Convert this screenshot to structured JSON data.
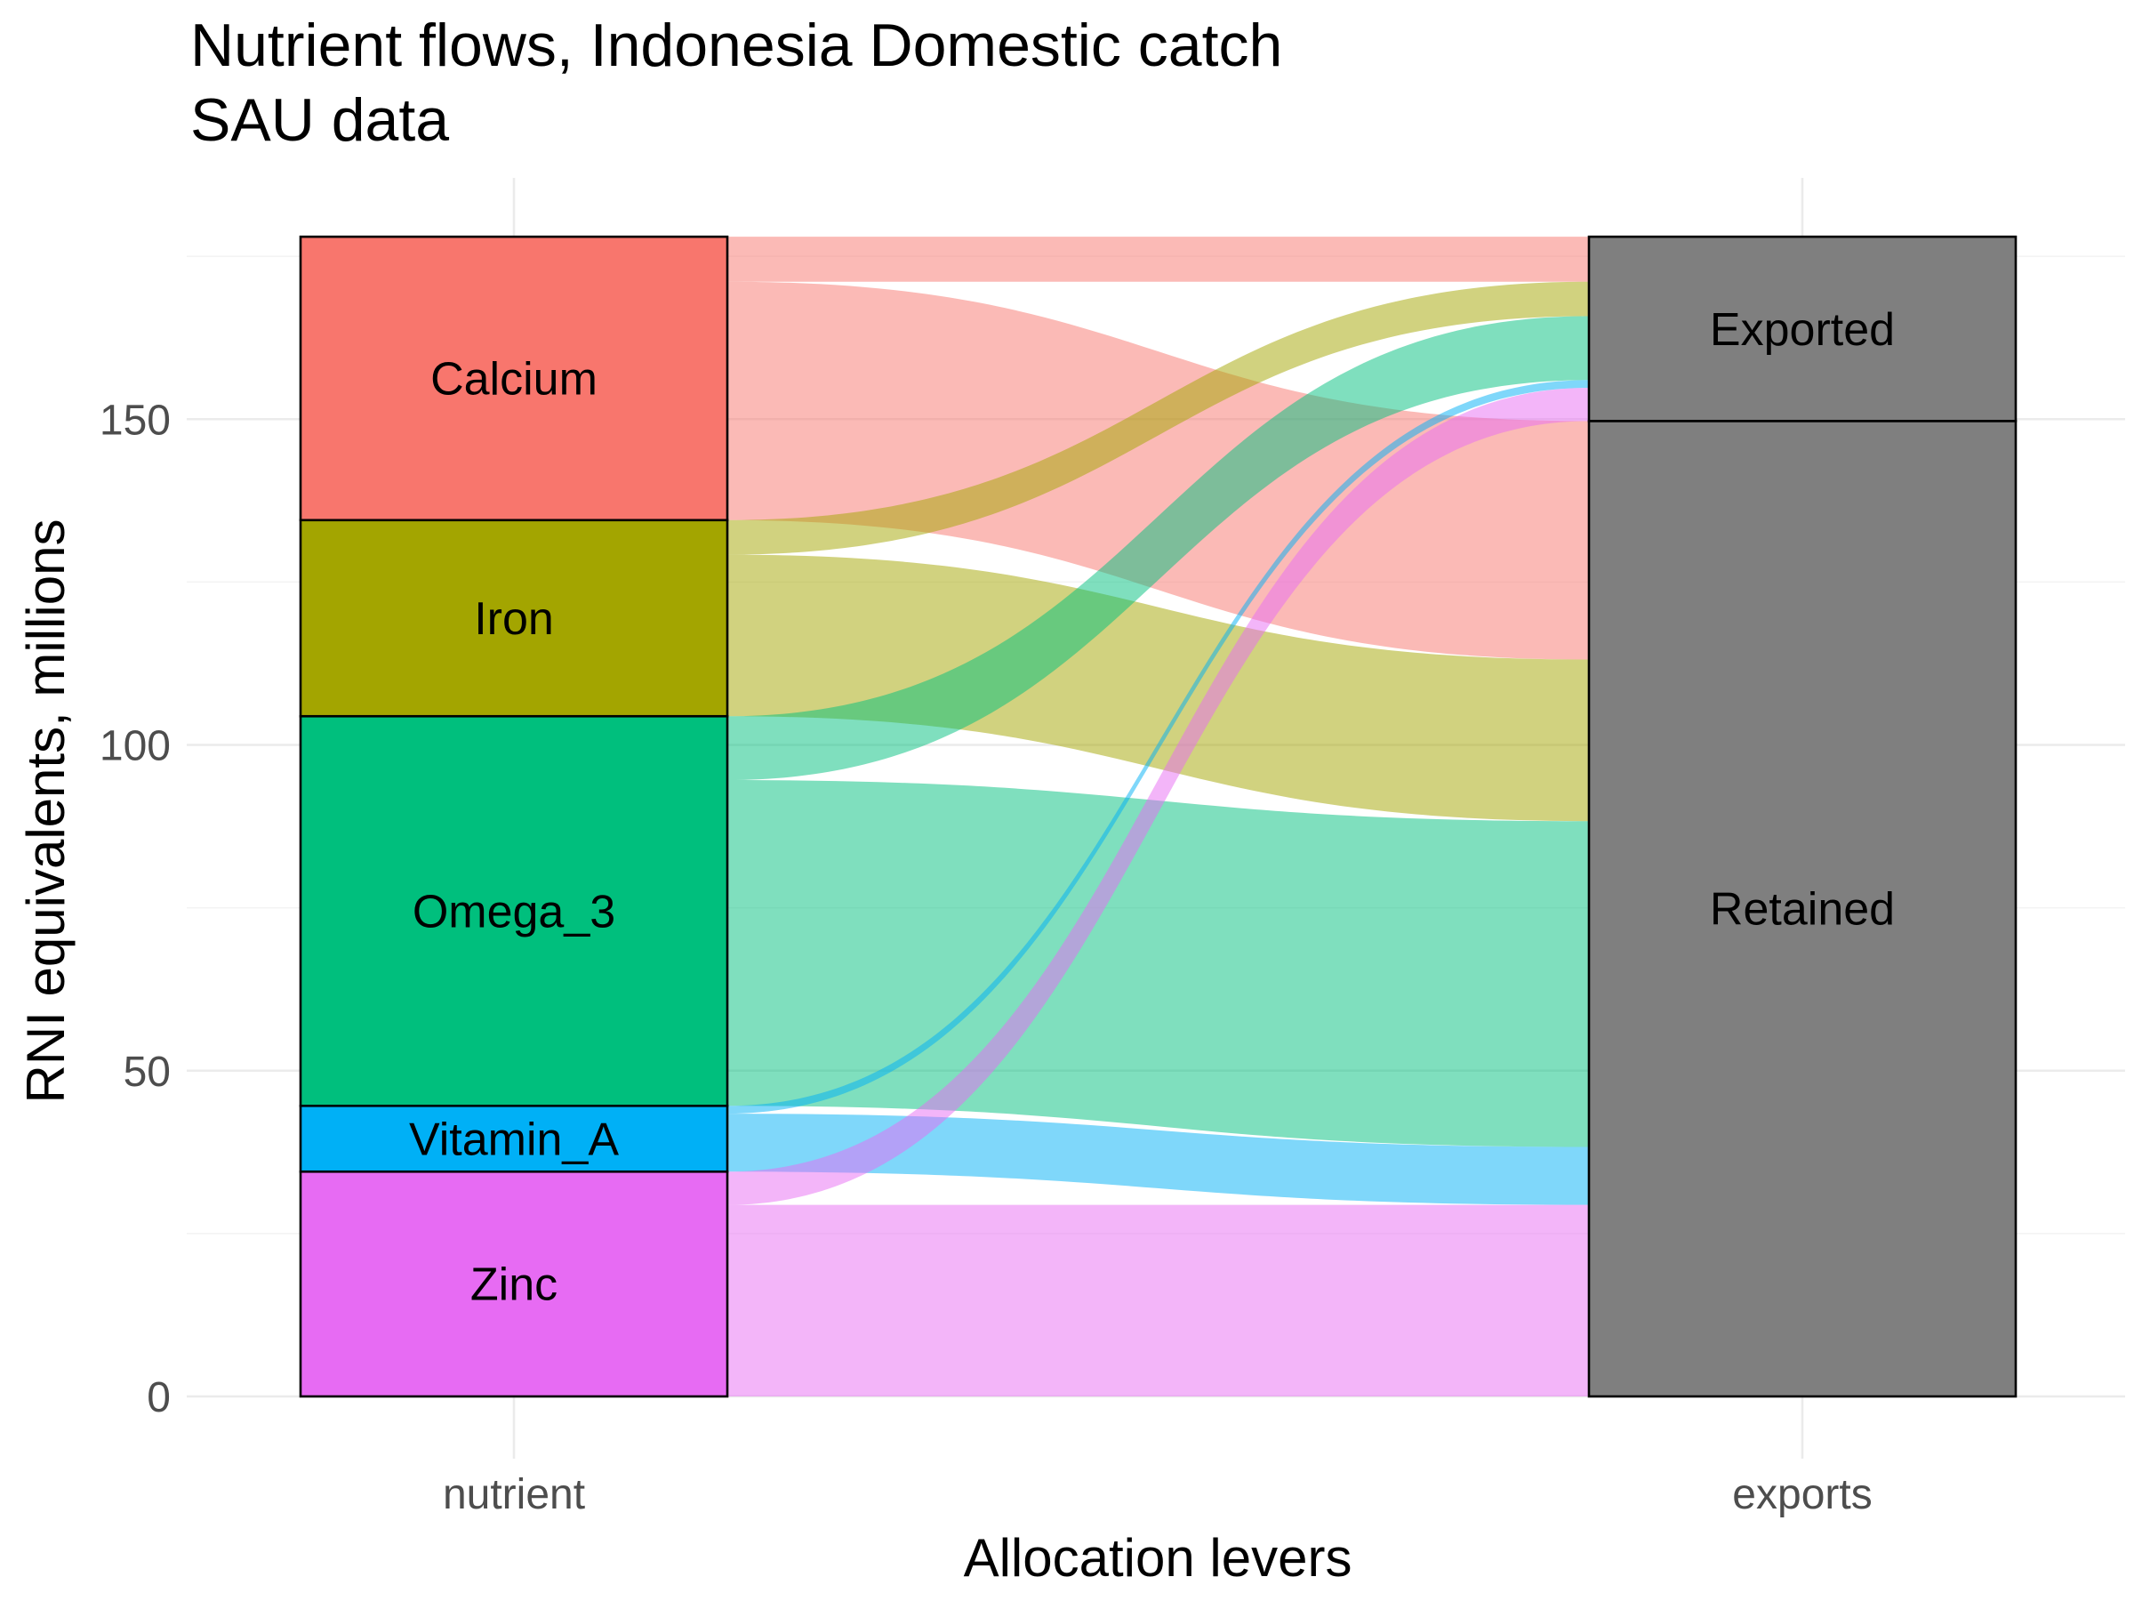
{
  "chart_data": {
    "type": "alluvial",
    "title": "Nutrient flows, Indonesia Domestic catch",
    "subtitle": "SAU data",
    "xlabel": "Allocation levers",
    "ylabel": "RNI equivalents, millions",
    "ylim": [
      0,
      178.6
    ],
    "yticks": [
      0,
      50,
      100,
      150
    ],
    "yticklabels": [
      "0",
      "50",
      "100",
      "150"
    ],
    "axes": [
      "nutrient",
      "exports"
    ],
    "grid": true,
    "legend": "none",
    "nutrients": [
      {
        "name": "Calcium",
        "color": "#F8766D"
      },
      {
        "name": "Iron",
        "color": "#A3A500"
      },
      {
        "name": "Omega_3",
        "color": "#00BF7D"
      },
      {
        "name": "Vitamin_A",
        "color": "#00B0F6"
      },
      {
        "name": "Zinc",
        "color": "#E76BF3"
      }
    ],
    "export_strata": [
      {
        "name": "Exported",
        "color": "#7F7F7F"
      },
      {
        "name": "Retained",
        "color": "#7F7F7F"
      }
    ],
    "flows": [
      {
        "nutrient": "Calcium",
        "exports": "Exported",
        "value": 6.9
      },
      {
        "nutrient": "Calcium",
        "exports": "Retained",
        "value": 36.6
      },
      {
        "nutrient": "Iron",
        "exports": "Exported",
        "value": 5.3
      },
      {
        "nutrient": "Iron",
        "exports": "Retained",
        "value": 24.8
      },
      {
        "nutrient": "Omega_3",
        "exports": "Exported",
        "value": 9.8
      },
      {
        "nutrient": "Omega_3",
        "exports": "Retained",
        "value": 50.0
      },
      {
        "nutrient": "Vitamin_A",
        "exports": "Exported",
        "value": 1.2
      },
      {
        "nutrient": "Vitamin_A",
        "exports": "Retained",
        "value": 8.9
      },
      {
        "nutrient": "Zinc",
        "exports": "Exported",
        "value": 5.1
      },
      {
        "nutrient": "Zinc",
        "exports": "Retained",
        "value": 29.4
      }
    ]
  }
}
